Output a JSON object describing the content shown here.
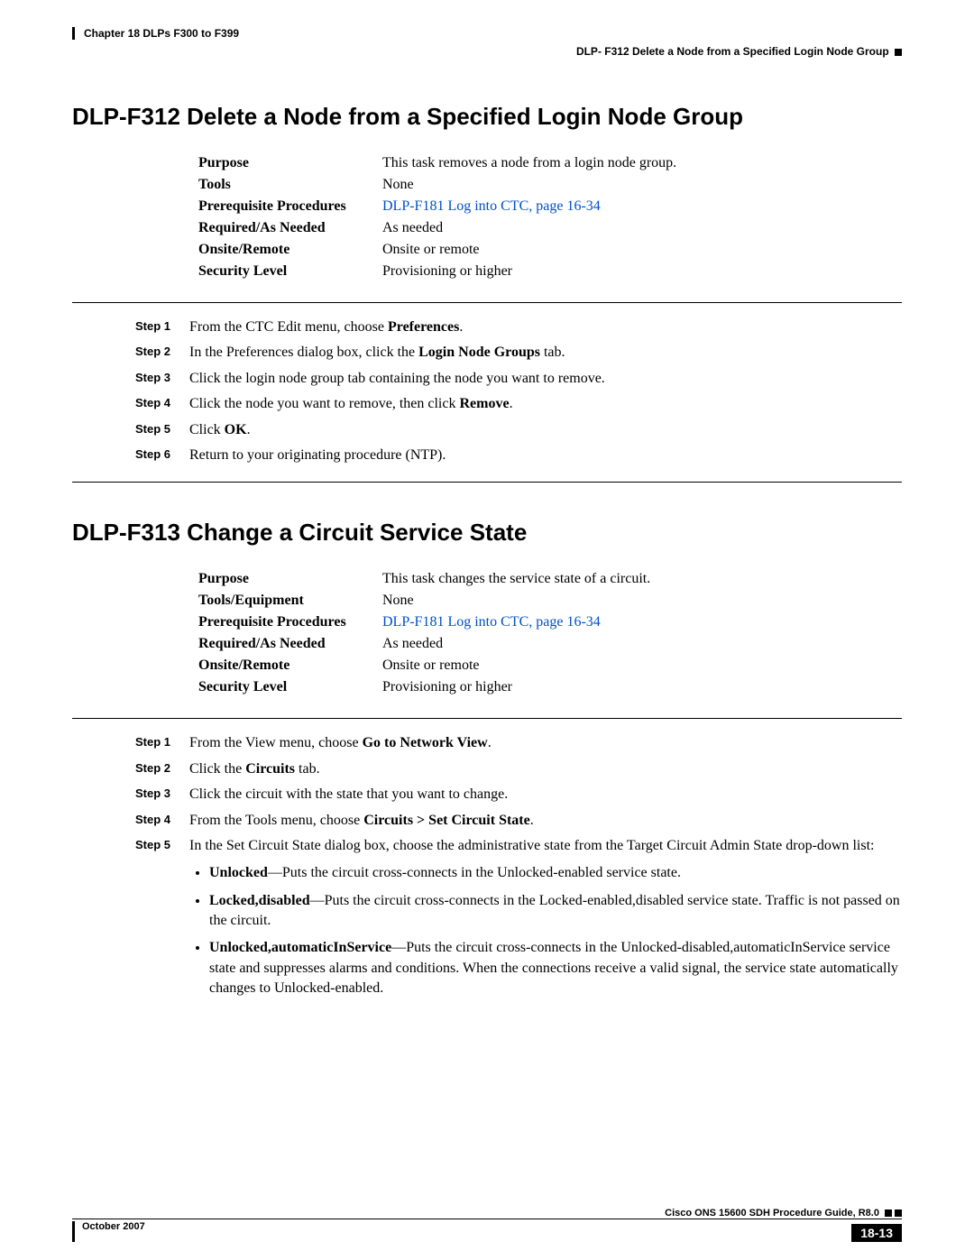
{
  "header": {
    "chapter": "Chapter 18 DLPs F300 to F399",
    "topic": "DLP- F312 Delete a Node from a Specified Login Node Group"
  },
  "section1": {
    "title": "DLP-F312 Delete a Node from a Specified Login Node Group",
    "info": {
      "purpose_label": "Purpose",
      "purpose_val": "This task removes a node from a login node group.",
      "tools_label": "Tools",
      "tools_val": "None",
      "prereq_label": "Prerequisite Procedures",
      "prereq_link": "DLP-F181 Log into CTC, page 16-34",
      "required_label": "Required/As Needed",
      "required_val": "As needed",
      "onsite_label": "Onsite/Remote",
      "onsite_val": "Onsite or remote",
      "security_label": "Security Level",
      "security_val": "Provisioning or higher"
    },
    "steps": {
      "s1": "Step 1",
      "s2": "Step 2",
      "s3": "Step 3",
      "s4": "Step 4",
      "s5": "Step 5",
      "s6": "Step 6"
    },
    "step_text": {
      "t1a": "From the CTC Edit menu, choose ",
      "t1b": "Preferences",
      "t1c": ".",
      "t2a": "In the Preferences dialog box, click the ",
      "t2b": "Login Node Groups",
      "t2c": " tab.",
      "t3": "Click the login node group tab containing the node you want to remove.",
      "t4a": "Click the node you want to remove, then click ",
      "t4b": "Remove",
      "t4c": ".",
      "t5a": "Click ",
      "t5b": "OK",
      "t5c": ".",
      "t6": "Return to your originating procedure (NTP)."
    }
  },
  "section2": {
    "title": "DLP-F313 Change a Circuit Service State",
    "info": {
      "purpose_label": "Purpose",
      "purpose_val": "This task changes the service state of a circuit.",
      "tools_label": "Tools/Equipment",
      "tools_val": "None",
      "prereq_label": "Prerequisite Procedures",
      "prereq_link": "DLP-F181 Log into CTC, page 16-34",
      "required_label": "Required/As Needed",
      "required_val": "As needed",
      "onsite_label": "Onsite/Remote",
      "onsite_val": "Onsite or remote",
      "security_label": "Security Level",
      "security_val": "Provisioning or higher"
    },
    "steps": {
      "s1": "Step 1",
      "s2": "Step 2",
      "s3": "Step 3",
      "s4": "Step 4",
      "s5": "Step 5"
    },
    "step_text": {
      "t1a": "From the View menu, choose ",
      "t1b": "Go to Network View",
      "t1c": ".",
      "t2a": "Click the ",
      "t2b": "Circuits",
      "t2c": " tab.",
      "t3": "Click the circuit with the state that you want to change.",
      "t4a": "From the Tools menu, choose ",
      "t4b": "Circuits > Set Circuit State",
      "t4c": ".",
      "t5": "In the Set Circuit State dialog box, choose the administrative state from the Target Circuit Admin State drop-down list:",
      "b1a": "Unlocked",
      "b1b": "—Puts the circuit cross-connects in the Unlocked-enabled service state.",
      "b2a": "Locked,disabled",
      "b2b": "—Puts the circuit cross-connects in the Locked-enabled,disabled service state. Traffic is not passed on the circuit.",
      "b3a": "Unlocked,automaticInService",
      "b3b": "—Puts the circuit cross-connects in the Unlocked-disabled,automaticInService service state and suppresses alarms and conditions. When the connections receive a valid signal, the service state automatically changes to Unlocked-enabled."
    }
  },
  "footer": {
    "guide": "Cisco ONS 15600 SDH Procedure Guide, R8.0",
    "date": "October 2007",
    "page": "18-13"
  }
}
